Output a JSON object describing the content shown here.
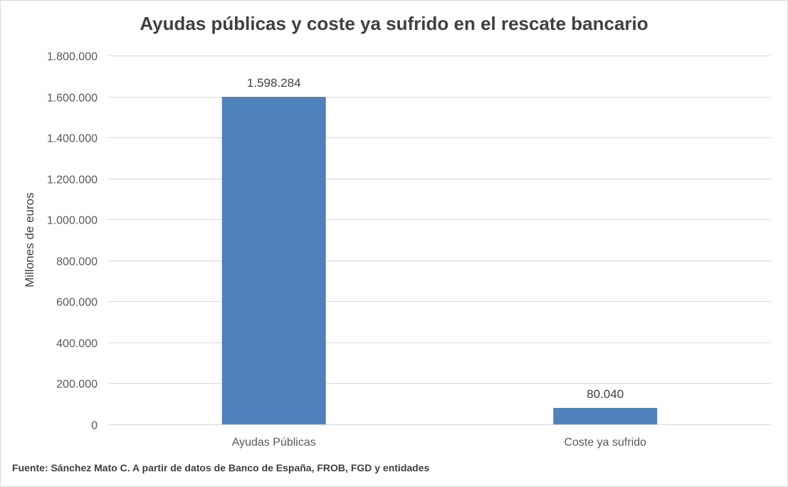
{
  "chart_data": {
    "type": "bar",
    "title": "Ayudas públicas y coste ya sufrido en el rescate bancario",
    "xlabel": "",
    "ylabel": "Millones de euros",
    "categories": [
      "Ayudas Públicas",
      "Coste ya sufrido"
    ],
    "values": [
      1598284,
      80040
    ],
    "data_labels": [
      "1.598.284",
      "80.040"
    ],
    "ylim": [
      0,
      1800000
    ],
    "y_ticks": [
      0,
      200000,
      400000,
      600000,
      800000,
      1000000,
      1200000,
      1400000,
      1600000,
      1800000
    ],
    "y_tick_labels": [
      "0",
      "200.000",
      "400.000",
      "600.000",
      "800.000",
      "1.000.000",
      "1.200.000",
      "1.400.000",
      "1.600.000",
      "1.800.000"
    ],
    "grid": true,
    "legend": "none",
    "bar_color": "#4f81bd",
    "grid_color": "#d9d9d9",
    "text_color": "#595959"
  },
  "source_note": "Fuente: Sánchez Mato C. A partir de datos de Banco de España, FROB, FGD y entidades"
}
